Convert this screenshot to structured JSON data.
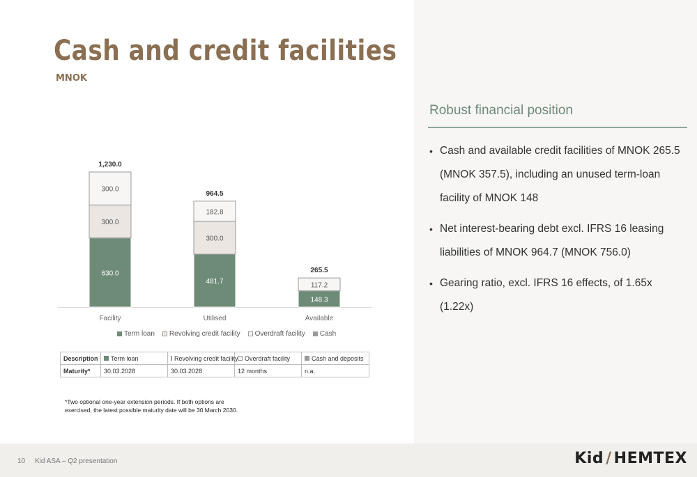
{
  "header": {
    "title": "Cash and credit facilities",
    "subtitle": "MNOK"
  },
  "panel": {
    "heading": "Robust financial position",
    "bullets": [
      "Cash and available credit facilities of MNOK 265.5 (MNOK 357.5), including an unused term-loan facility of MNOK 148",
      "Net interest-bearing debt excl. IFRS 16 leasing liabilities of MNOK 964.7 (MNOK 756.0)",
      "Gearing ratio, excl. IFRS 16 effects, of 1.65x (1.22x)"
    ]
  },
  "colors": {
    "term_loan": "#6e8b77",
    "revolving": "#ebe6e1",
    "overdraft": "#f8f6f4",
    "cash": "#6e8b77",
    "brand": "#8b6f52"
  },
  "chart_data": {
    "type": "bar",
    "stacked": true,
    "categories": [
      "Facility",
      "Utilised",
      "Available"
    ],
    "series": [
      {
        "name": "Term loan",
        "values": [
          630.0,
          481.7,
          null
        ],
        "labels": [
          "630.0",
          "481.7",
          ""
        ]
      },
      {
        "name": "Cash",
        "values": [
          null,
          null,
          148.3
        ],
        "labels": [
          "",
          "",
          "148.3"
        ]
      },
      {
        "name": "Revolving credit facility",
        "values": [
          300.0,
          300.0,
          null
        ],
        "labels": [
          "300.0",
          "300.0",
          ""
        ]
      },
      {
        "name": "Overdraft facility",
        "values": [
          300.0,
          182.8,
          117.2
        ],
        "labels": [
          "300.0",
          "182.8",
          "117.2"
        ]
      }
    ],
    "totals": [
      1230.0,
      964.5,
      265.5
    ],
    "total_labels": [
      "1,230.0",
      "964.5",
      "265.5"
    ],
    "legend": [
      "Term loan",
      "Revolving credit facility",
      "Overdraft facility",
      "Cash"
    ],
    "legend_position": "bottom",
    "ylim": [
      0,
      1230
    ],
    "grid": false
  },
  "table": {
    "rows": [
      [
        "Description",
        "Term loan",
        "Revolving credit facility",
        "Overdraft facility",
        "Cash and deposits"
      ],
      [
        "Maturity*",
        "30.03.2028",
        "30.03.2028",
        "12 months",
        "n.a."
      ]
    ]
  },
  "footnote": "*Two optional one-year extension periods. If both options are exercised, the latest possible maturity date will be 30 March 2030.",
  "footer": {
    "page_number": "10",
    "label": "Kid ASA – Q2 presentation",
    "logo_left": "Kid",
    "logo_slash": "/",
    "logo_right": "HEMTEX"
  }
}
